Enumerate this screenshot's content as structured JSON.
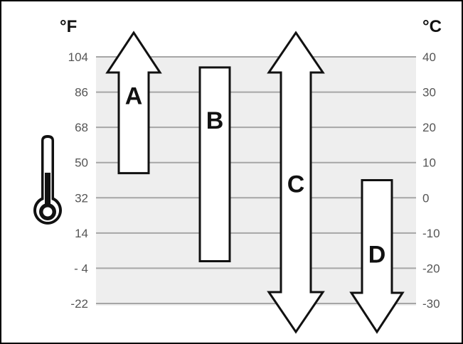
{
  "diagram": {
    "unit_left": "°F",
    "unit_right": "°C",
    "fahrenheit_ticks": [
      "104",
      "86",
      "68",
      "50",
      "32",
      "14",
      "- 4",
      "-22"
    ],
    "celsius_ticks": [
      "40",
      "30",
      "20",
      "10",
      "0",
      "-10",
      "-20",
      "-30"
    ],
    "celsius_values": [
      40,
      30,
      20,
      10,
      0,
      -10,
      -20,
      -30
    ],
    "celsius_range": [
      -30,
      40
    ],
    "thermometer_icon": "thermometer-icon",
    "ranges": [
      {
        "label": "A",
        "type": "arrow-up",
        "min_c": 7,
        "max_c": 40,
        "open_top": true,
        "open_bottom": false
      },
      {
        "label": "B",
        "type": "bar",
        "min_c": -18,
        "max_c": 37,
        "open_top": false,
        "open_bottom": false
      },
      {
        "label": "C",
        "type": "arrow-both",
        "min_c": -30,
        "max_c": 40,
        "open_top": true,
        "open_bottom": true
      },
      {
        "label": "D",
        "type": "arrow-down",
        "min_c": -30,
        "max_c": 5,
        "open_top": false,
        "open_bottom": true
      }
    ]
  }
}
